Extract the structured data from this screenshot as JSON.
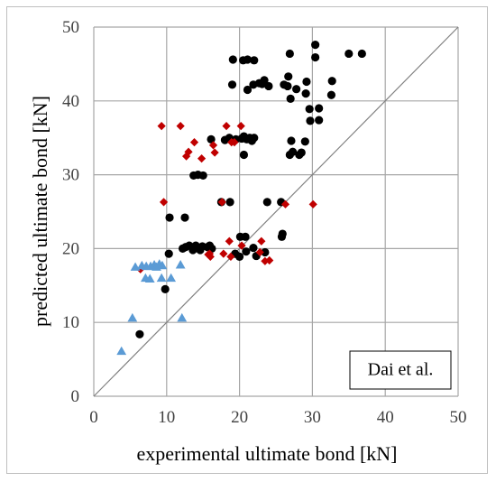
{
  "chart_data": {
    "type": "scatter",
    "xlabel": "experimental ultimate bond [kN]",
    "ylabel": "predicted ultimate bond [kN]",
    "xlim": [
      0,
      50
    ],
    "ylim": [
      0,
      50
    ],
    "xticks": [
      0,
      10,
      20,
      30,
      40,
      50
    ],
    "yticks": [
      0,
      10,
      20,
      30,
      40,
      50
    ],
    "grid": true,
    "reference_line": "y = x",
    "legend": {
      "text": "Dai et al.",
      "placement": "bottom-right"
    },
    "colors": {
      "black": "#000000",
      "red": "#c00000",
      "blue": "#5b9bd5",
      "grid": "#a6a6a6",
      "diag": "#808080"
    },
    "series": [
      {
        "marker": "circle",
        "color": "#000000",
        "points": [
          [
            6.3,
            8.4
          ],
          [
            9.8,
            14.5
          ],
          [
            10.3,
            19.3
          ],
          [
            10.4,
            24.2
          ],
          [
            12.2,
            20.0
          ],
          [
            12.6,
            20.2
          ],
          [
            12.5,
            24.2
          ],
          [
            13.1,
            20.4
          ],
          [
            13.6,
            19.8
          ],
          [
            13.8,
            20.0
          ],
          [
            13.7,
            29.9
          ],
          [
            14.0,
            20.4
          ],
          [
            14.3,
            30.0
          ],
          [
            14.6,
            19.8
          ],
          [
            14.9,
            20.3
          ],
          [
            15.0,
            29.9
          ],
          [
            15.6,
            20.2
          ],
          [
            15.9,
            20.4
          ],
          [
            16.1,
            34.8
          ],
          [
            16.2,
            20.0
          ],
          [
            17.5,
            26.3
          ],
          [
            18.0,
            34.7
          ],
          [
            18.7,
            26.3
          ],
          [
            18.6,
            35.0
          ],
          [
            19.0,
            42.2
          ],
          [
            19.1,
            45.6
          ],
          [
            19.4,
            19.3
          ],
          [
            19.5,
            34.8
          ],
          [
            20.0,
            18.9
          ],
          [
            20.1,
            21.6
          ],
          [
            20.3,
            34.9
          ],
          [
            20.5,
            45.5
          ],
          [
            20.6,
            35.2
          ],
          [
            20.6,
            32.7
          ],
          [
            20.8,
            21.6
          ],
          [
            20.9,
            19.6
          ],
          [
            21.0,
            34.8
          ],
          [
            21.1,
            45.6
          ],
          [
            21.1,
            41.5
          ],
          [
            21.4,
            35.0
          ],
          [
            21.7,
            34.6
          ],
          [
            21.9,
            20.1
          ],
          [
            21.9,
            42.2
          ],
          [
            22.0,
            45.5
          ],
          [
            22.0,
            35.0
          ],
          [
            22.3,
            19.0
          ],
          [
            22.7,
            42.4
          ],
          [
            23.1,
            42.3
          ],
          [
            23.4,
            42.8
          ],
          [
            23.5,
            19.5
          ],
          [
            23.8,
            26.3
          ],
          [
            24.0,
            42.0
          ],
          [
            25.7,
            26.3
          ],
          [
            25.8,
            21.6
          ],
          [
            25.9,
            22.0
          ],
          [
            26.1,
            42.2
          ],
          [
            26.6,
            42.0
          ],
          [
            26.7,
            43.3
          ],
          [
            26.9,
            32.7
          ],
          [
            27.1,
            34.6
          ],
          [
            27.0,
            40.3
          ],
          [
            26.9,
            46.4
          ],
          [
            27.3,
            33.1
          ],
          [
            27.8,
            41.6
          ],
          [
            28.2,
            32.7
          ],
          [
            28.5,
            33.0
          ],
          [
            29.0,
            34.5
          ],
          [
            29.1,
            41.0
          ],
          [
            29.2,
            42.6
          ],
          [
            29.7,
            37.3
          ],
          [
            29.6,
            38.9
          ],
          [
            30.4,
            47.6
          ],
          [
            30.4,
            45.9
          ],
          [
            30.9,
            39.0
          ],
          [
            30.9,
            37.4
          ],
          [
            32.6,
            40.8
          ],
          [
            32.7,
            42.7
          ],
          [
            35.0,
            46.4
          ],
          [
            36.8,
            46.4
          ]
        ]
      },
      {
        "marker": "diamond",
        "color": "#c00000",
        "points": [
          [
            6.4,
            17.2
          ],
          [
            9.3,
            36.6
          ],
          [
            9.6,
            26.3
          ],
          [
            11.9,
            36.6
          ],
          [
            12.7,
            32.5
          ],
          [
            13.0,
            33.1
          ],
          [
            13.8,
            34.4
          ],
          [
            14.8,
            32.2
          ],
          [
            15.7,
            19.2
          ],
          [
            15.9,
            19.3
          ],
          [
            16.0,
            18.9
          ],
          [
            16.4,
            34.0
          ],
          [
            16.6,
            33.0
          ],
          [
            17.6,
            26.3
          ],
          [
            17.8,
            19.3
          ],
          [
            18.2,
            36.6
          ],
          [
            18.6,
            21.0
          ],
          [
            18.8,
            18.9
          ],
          [
            18.9,
            34.4
          ],
          [
            19.3,
            34.4
          ],
          [
            20.2,
            36.6
          ],
          [
            20.3,
            20.4
          ],
          [
            22.8,
            19.5
          ],
          [
            23.0,
            21.0
          ],
          [
            23.5,
            18.3
          ],
          [
            24.1,
            18.4
          ],
          [
            26.3,
            26.0
          ],
          [
            30.1,
            26.0
          ]
        ]
      },
      {
        "marker": "triangle",
        "color": "#5b9bd5",
        "points": [
          [
            3.8,
            6.1
          ],
          [
            5.3,
            10.6
          ],
          [
            5.7,
            17.5
          ],
          [
            6.6,
            17.7
          ],
          [
            7.1,
            16.0
          ],
          [
            7.2,
            17.6
          ],
          [
            7.7,
            15.9
          ],
          [
            7.8,
            17.6
          ],
          [
            8.3,
            17.8
          ],
          [
            8.6,
            17.5
          ],
          [
            9.0,
            17.9
          ],
          [
            9.3,
            16.0
          ],
          [
            9.4,
            17.7
          ],
          [
            10.6,
            16.0
          ],
          [
            11.9,
            17.8
          ],
          [
            12.1,
            10.6
          ]
        ]
      }
    ]
  }
}
